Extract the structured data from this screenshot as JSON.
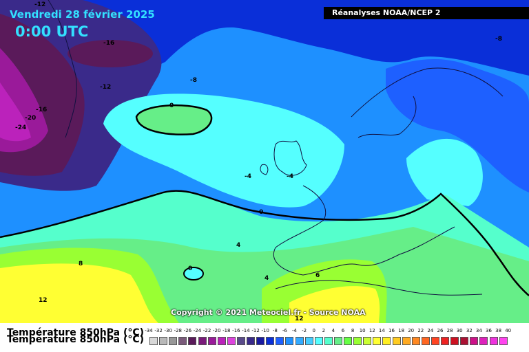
{
  "header": {
    "date": "Vendredi 28 février 2025",
    "time": "0:00 UTC",
    "source": "Réanalyses NOAA/NCEP 2"
  },
  "footer": {
    "copyright": "Copyright © 2021 Meteociel.fr - Source NOAA",
    "variable": "Température 850hPa (°C)"
  },
  "contour_labels": {
    "m12_top": "-12",
    "m16": "-16",
    "m12_left": "-12",
    "m16_left": "-16",
    "m20": "-20",
    "m24": "-24",
    "m8_center": "-8",
    "m8_right": "-8",
    "zero_ring": "0",
    "m4_a": "-4",
    "m4_b": "-4",
    "zero_line": "0",
    "four_a": "4",
    "four_b": "4",
    "eight": "8",
    "zero_small": "0",
    "twelve_left": "12",
    "six": "6",
    "twelve_bottom": "12"
  },
  "colors": {
    "ocean_blue": "#1e90ff",
    "deep_blue": "#0a2fd8",
    "cold_purple": "#7a1a7a",
    "cyan": "#55ffff",
    "green": "#66ee88",
    "yellow": "#ffff33",
    "lime": "#aaff33"
  },
  "legend": {
    "ticks": [
      "-34",
      "-32",
      "-30",
      "-28",
      "-26",
      "-24",
      "-22",
      "-20",
      "-18",
      "-16",
      "-14",
      "-12",
      "-10",
      "-8",
      "-6",
      "-4",
      "-2",
      "0",
      "2",
      "4",
      "6",
      "8",
      "10",
      "12",
      "14",
      "16",
      "18",
      "20",
      "22",
      "24",
      "26",
      "28",
      "30",
      "32",
      "34",
      "36",
      "38",
      "40"
    ],
    "colors": [
      "#d8d8d8",
      "#b8b8b8",
      "#989898",
      "#7a5a7a",
      "#5a1a5a",
      "#7a1a7a",
      "#9a1a9a",
      "#bb22bb",
      "#dd44dd",
      "#5a4a8a",
      "#3a2a8a",
      "#1a1aa0",
      "#0a2fd8",
      "#1e60ff",
      "#1e90ff",
      "#33aaff",
      "#44ccff",
      "#55ffff",
      "#55ffcc",
      "#66ee88",
      "#66ff44",
      "#99ff33",
      "#ccff33",
      "#ffff33",
      "#ffee22",
      "#ffcc22",
      "#ffaa22",
      "#ff8822",
      "#ff6622",
      "#ff4422",
      "#ee2222",
      "#cc1122",
      "#aa1133",
      "#cc1188",
      "#dd22bb",
      "#ee33dd",
      "#ff44ee"
    ]
  }
}
